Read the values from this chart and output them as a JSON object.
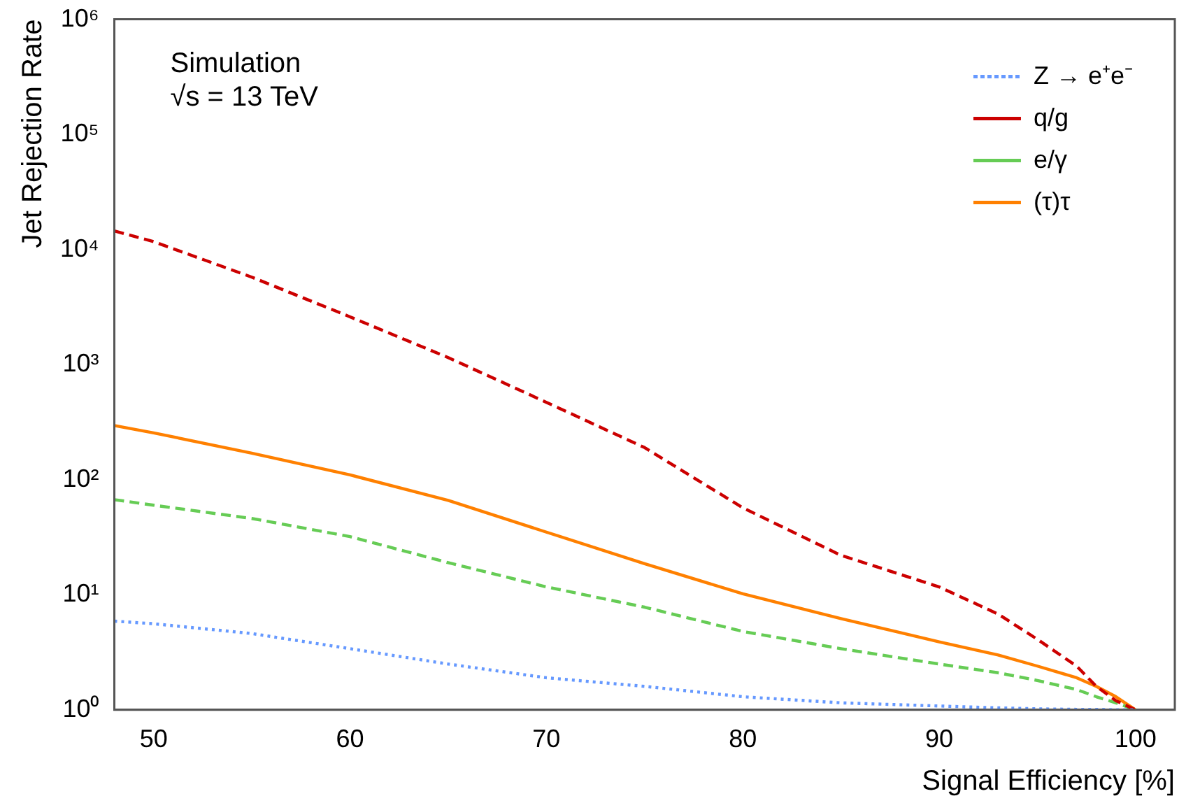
{
  "chart_data": {
    "type": "line",
    "xlabel": "Signal Efficiency [%]",
    "ylabel": "Jet Rejection Rate",
    "annotations": [
      "Simulation",
      "√s = 13 TeV"
    ],
    "log": "y",
    "grid": false,
    "legend": "top right",
    "marker": "none",
    "xlim": [
      48,
      102
    ],
    "xticks": [
      50,
      60,
      70,
      80,
      90,
      100
    ],
    "ylim": [
      1,
      1000000
    ],
    "yticks": [
      {
        "value": 1,
        "label": "10⁰"
      },
      {
        "value": 10,
        "label": "10¹"
      },
      {
        "value": 100,
        "label": "10²"
      },
      {
        "value": 1000,
        "label": "10³"
      },
      {
        "value": 10000,
        "label": "10⁴"
      },
      {
        "value": 100000,
        "label": "10⁵"
      },
      {
        "value": 1000000,
        "label": "10⁶"
      }
    ],
    "x": [
      48,
      50,
      55,
      60,
      65,
      70,
      75,
      80,
      85,
      90,
      93,
      95,
      97,
      98,
      99,
      100
    ],
    "series": [
      {
        "name": "Z → e⁺e⁻",
        "color": "#6699ff",
        "line_style": "dotted",
        "values": [
          5.9,
          5.6,
          4.6,
          3.4,
          2.5,
          1.9,
          1.6,
          1.3,
          1.15,
          1.08,
          1.04,
          1.02,
          1.01,
          1.01,
          1.0,
          1.0
        ]
      },
      {
        "name": "q/g",
        "color": "#cc0000",
        "line_style": "dashed",
        "values": [
          14500,
          11700,
          5750,
          2600,
          1150,
          470,
          190,
          57,
          22,
          11.7,
          6.8,
          4.1,
          2.4,
          1.6,
          1.2,
          1.0
        ]
      },
      {
        "name": "e/γ",
        "color": "#66cc55",
        "line_style": "dashed",
        "values": [
          67,
          60,
          46,
          32,
          19,
          11.7,
          7.8,
          4.8,
          3.4,
          2.5,
          2.1,
          1.8,
          1.5,
          1.3,
          1.15,
          1.0
        ]
      },
      {
        "name": "(τ)τ",
        "color": "#ff8000",
        "line_style": "solid",
        "values": [
          295,
          255,
          170,
          110,
          66,
          35,
          18.6,
          10.2,
          6.2,
          3.9,
          3.0,
          2.4,
          1.9,
          1.6,
          1.3,
          1.0
        ]
      }
    ]
  }
}
